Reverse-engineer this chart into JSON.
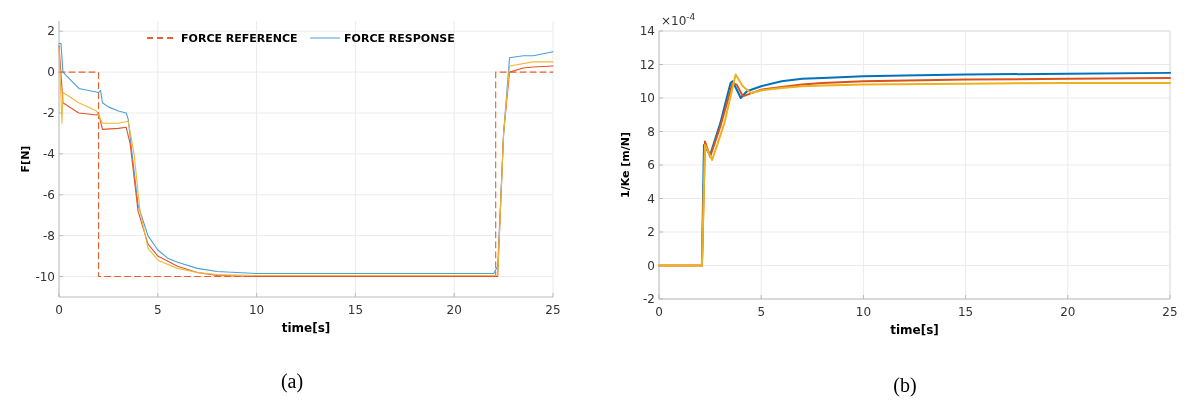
{
  "chart_data": [
    {
      "type": "line",
      "xlabel": "time[s]",
      "ylabel": "F[N]",
      "xlim": [
        0,
        25
      ],
      "ylim": [
        -11,
        2.5
      ],
      "xticks": [
        0,
        5,
        10,
        15,
        20,
        25
      ],
      "yticks": [
        -10,
        -8,
        -6,
        -4,
        -2,
        0,
        2
      ],
      "grid": true,
      "legend": "top",
      "annotations": [
        "(a)"
      ],
      "series": [
        {
          "name": "FORCE REFERENCE",
          "color": "#e8602c",
          "line_style": "dashed",
          "x": [
            0,
            2,
            2,
            22.1,
            22.1,
            25
          ],
          "values": [
            0,
            0,
            -10,
            -10,
            0,
            0
          ]
        },
        {
          "name": "FORCE RESPONSE",
          "color": "#4a9fd8",
          "line_style": "solid",
          "x": [
            0,
            0.1,
            0.2,
            1,
            2,
            2.1,
            2.2,
            2.5,
            3,
            3.4,
            3.5,
            3.7,
            4,
            4.5,
            5,
            5.5,
            6,
            7,
            8,
            9,
            10,
            12,
            15,
            20,
            22,
            22.2,
            22.5,
            22.8,
            23.5,
            24,
            25
          ],
          "values": [
            1.4,
            1.4,
            0,
            -0.8,
            -1,
            -0.9,
            -1.5,
            -1.7,
            -1.9,
            -2,
            -2.3,
            -4,
            -6.5,
            -8,
            -8.7,
            -9.1,
            -9.3,
            -9.6,
            -9.75,
            -9.8,
            -9.85,
            -9.85,
            -9.85,
            -9.85,
            -9.85,
            -9.5,
            -3,
            0.7,
            0.8,
            0.8,
            1
          ]
        },
        {
          "color": "#e0562a",
          "line_style": "solid",
          "x": [
            0,
            0.2,
            1,
            1.9,
            2,
            2.2,
            3,
            3.4,
            3.6,
            4,
            4.5,
            5,
            6,
            7,
            8,
            10,
            15,
            20,
            22.2,
            22.5,
            22.8,
            23.5,
            24,
            25
          ],
          "values": [
            1.3,
            -1.5,
            -2,
            -2.1,
            -2,
            -2.8,
            -2.75,
            -2.7,
            -3.5,
            -6.8,
            -8.4,
            -9,
            -9.5,
            -9.8,
            -9.95,
            -10,
            -10,
            -10,
            -10,
            -3,
            0,
            0.2,
            0.25,
            0.3
          ]
        },
        {
          "color": "#f0b93a",
          "line_style": "solid",
          "x": [
            0,
            0.15,
            0.2,
            1,
            1.9,
            2.2,
            3,
            3.5,
            3.8,
            4.1,
            4.5,
            5,
            6,
            7,
            8,
            10,
            15,
            22.2,
            22.5,
            22.8,
            24,
            25
          ],
          "values": [
            1.2,
            -2.5,
            -1,
            -1.5,
            -1.9,
            -2.5,
            -2.5,
            -2.4,
            -4,
            -6.8,
            -8.6,
            -9.2,
            -9.6,
            -9.8,
            -9.9,
            -9.95,
            -9.95,
            -9.95,
            -3,
            0.3,
            0.5,
            0.5
          ]
        }
      ]
    },
    {
      "type": "line",
      "xlabel": "time[s]",
      "ylabel": "1/Ke [m/N]",
      "xlim": [
        0,
        25
      ],
      "ylim": [
        -2,
        14
      ],
      "xticks": [
        0,
        5,
        10,
        15,
        20,
        25
      ],
      "yticks": [
        -2,
        0,
        2,
        4,
        6,
        8,
        10,
        12,
        14
      ],
      "grid": true,
      "annotations": [
        "×10$^{-4}$",
        "(b)"
      ],
      "series": [
        {
          "color": "#0072bd",
          "x": [
            2.1,
            2.2,
            2.5,
            3,
            3.5,
            3.6,
            4,
            4.3,
            5,
            6,
            7,
            8,
            10,
            12,
            15,
            20,
            25
          ],
          "values": [
            0,
            7.2,
            6.6,
            8.5,
            10.9,
            11,
            10,
            10.4,
            10.7,
            11,
            11.15,
            11.2,
            11.3,
            11.35,
            11.4,
            11.45,
            11.5
          ]
        },
        {
          "color": "#d95319",
          "x": [
            0,
            2.1,
            2.25,
            2.5,
            3,
            3.6,
            3.8,
            4.1,
            5,
            6,
            7,
            8,
            10,
            15,
            20,
            25
          ],
          "values": [
            0,
            0,
            7.4,
            6.5,
            8.3,
            10.9,
            10.8,
            10.1,
            10.5,
            10.65,
            10.8,
            10.9,
            11,
            11.1,
            11.15,
            11.2
          ]
        },
        {
          "color": "#edb120",
          "x": [
            0,
            2.1,
            2.25,
            2.6,
            3.2,
            3.75,
            4.1,
            4.5,
            5,
            6,
            7,
            8,
            10,
            15,
            20,
            25
          ],
          "values": [
            0,
            0,
            7.2,
            6.3,
            8.5,
            11.4,
            10.7,
            10.3,
            10.45,
            10.6,
            10.7,
            10.75,
            10.8,
            10.85,
            10.9,
            10.9
          ]
        }
      ]
    }
  ]
}
